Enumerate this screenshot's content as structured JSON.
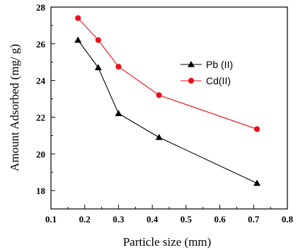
{
  "chart_data": {
    "type": "line",
    "title": "",
    "xlabel": "Particle size (mm)",
    "ylabel": "Amount Adsorbed (mg/ g)",
    "xlim": [
      0.1,
      0.8
    ],
    "ylim": [
      17,
      28
    ],
    "x_ticks": [
      "0.1",
      "0.2",
      "0.3",
      "0.4",
      "0.5",
      "0.6",
      "0.7",
      "0.8"
    ],
    "y_ticks": [
      "18",
      "20",
      "22",
      "24",
      "26",
      "28"
    ],
    "grid": false,
    "legend_placement": "center-right",
    "series": [
      {
        "name": "Pb (II)",
        "color": "#000000",
        "marker": "triangle",
        "x": [
          0.18,
          0.24,
          0.3,
          0.42,
          0.71
        ],
        "y": [
          26.2,
          24.7,
          22.2,
          20.9,
          18.4
        ]
      },
      {
        "name": "Cd(II)",
        "color": "#e8111a",
        "marker": "circle",
        "x": [
          0.18,
          0.24,
          0.3,
          0.42,
          0.71
        ],
        "y": [
          27.4,
          26.2,
          24.75,
          23.2,
          21.35
        ]
      }
    ]
  }
}
